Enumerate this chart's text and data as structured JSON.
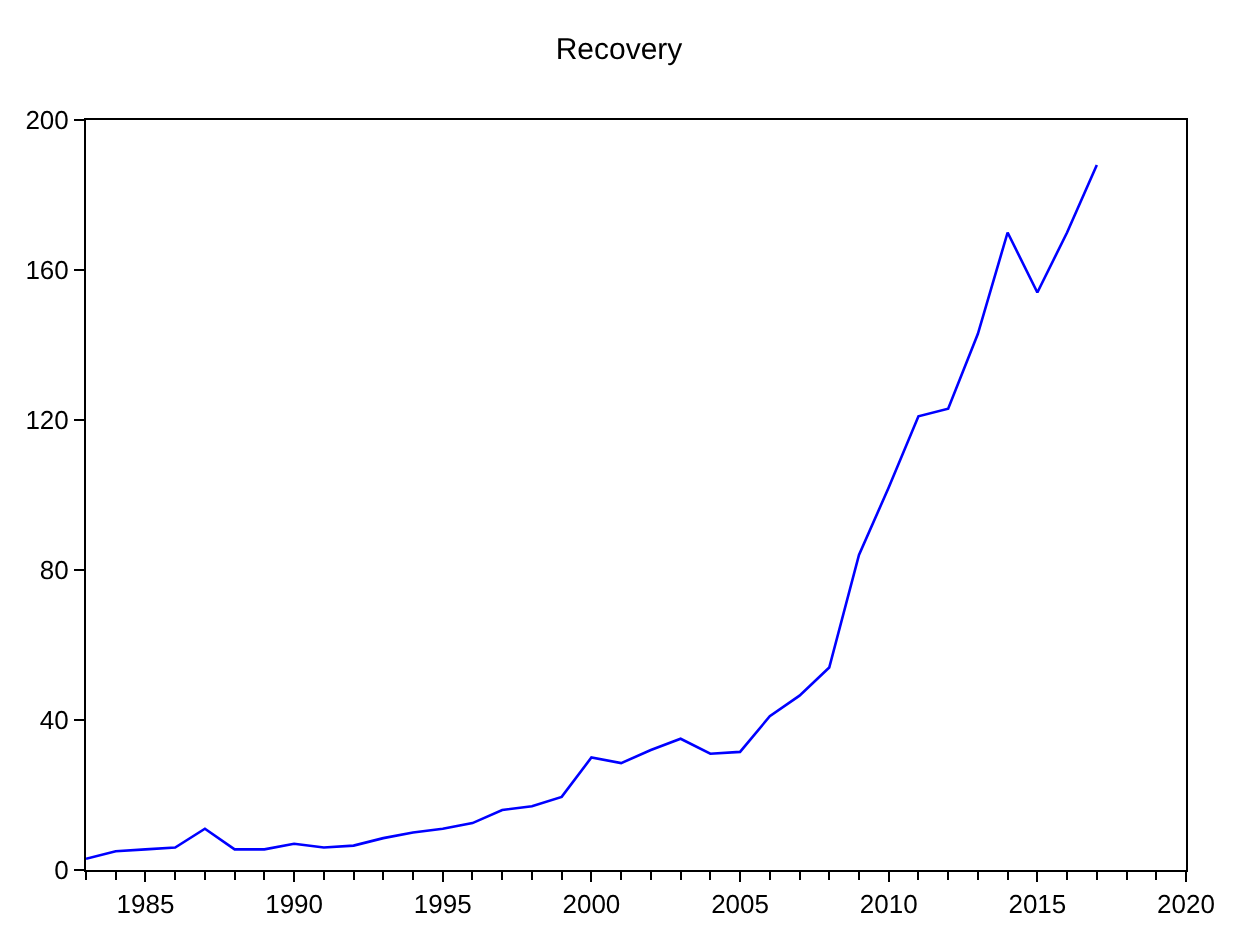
{
  "chart_data": {
    "type": "line",
    "title": "Recovery",
    "x": [
      1983,
      1984,
      1985,
      1986,
      1987,
      1988,
      1989,
      1990,
      1991,
      1992,
      1993,
      1994,
      1995,
      1996,
      1997,
      1998,
      1999,
      2000,
      2001,
      2002,
      2003,
      2004,
      2005,
      2006,
      2007,
      2008,
      2009,
      2010,
      2011,
      2012,
      2013,
      2014,
      2015,
      2016,
      2017
    ],
    "series": [
      {
        "color": "#0000ff",
        "values": [
          3,
          5,
          5.5,
          6,
          11,
          5.5,
          5.5,
          7,
          6,
          6.5,
          8.5,
          10,
          11,
          12.5,
          16,
          17,
          19.5,
          30,
          28.5,
          32,
          35,
          31,
          31.5,
          41,
          46.5,
          54,
          84,
          102,
          121,
          123,
          143,
          170,
          154,
          170,
          188
        ]
      }
    ],
    "xlim": [
      1983,
      2020
    ],
    "xticks": [
      1985,
      1990,
      1995,
      2000,
      2005,
      2010,
      2015,
      2020
    ],
    "ylim": [
      0,
      200
    ],
    "yticks": [
      0,
      40,
      80,
      120,
      160,
      200
    ],
    "legend": false,
    "marker": "none",
    "line_style": "solid"
  }
}
